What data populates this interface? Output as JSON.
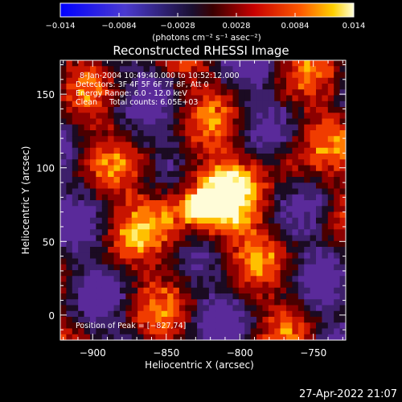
{
  "colorbar": {
    "ticks": [
      "−0.014",
      "−0.0084",
      "−0.0028",
      "0.0028",
      "0.0084",
      "0.014"
    ],
    "tick_values": [
      -0.014,
      -0.0084,
      -0.0028,
      0.0028,
      0.0084,
      0.014
    ],
    "range": [
      -0.014,
      0.014
    ],
    "units_label": "(photons cm⁻² s⁻¹ asec⁻²)"
  },
  "colors": {
    "background": "#000000",
    "frame": "#ffffff",
    "negative": "#5a2a9a",
    "positive_high": "#fff2a0"
  },
  "chart_data": {
    "type": "heatmap",
    "title": "Reconstructed RHESSI Image",
    "xlabel": "Heliocentric X (arcsec)",
    "ylabel": "Heliocentric Y (arcsec)",
    "xlim": [
      -922,
      -728
    ],
    "ylim": [
      -17,
      173
    ],
    "xticks": [
      -900,
      -850,
      -800,
      -750
    ],
    "xtick_labels": [
      "−900",
      "−850",
      "−800",
      "−750"
    ],
    "yticks": [
      0,
      50,
      100,
      150
    ],
    "ytick_labels": [
      "0",
      "50",
      "100",
      "150"
    ],
    "annotations": [
      "8-Jan-2004 10:49:40.000 to 10:52:12.000",
      "Detectors: 3F 4F 5F 6F 7F 8F, Att 0",
      "Energy Range: 6.0 - 12.0 keV",
      "Clean     Total counts: 6.05E+03"
    ],
    "peak_label": "Position of Peak = [−827,74]",
    "peak": {
      "x": -827,
      "y": 74
    },
    "colormap": "rhessi (purple-black-red-yellow-white)",
    "grid": false
  },
  "timestamp": "27-Apr-2022 21:07"
}
